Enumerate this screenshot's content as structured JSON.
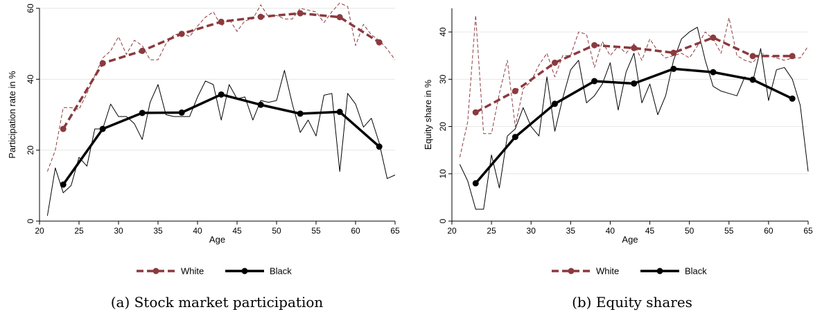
{
  "colors": {
    "white": "#8b3a3e",
    "black": "#000000",
    "grid": "#e6e6e6",
    "axis": "#000000"
  },
  "chart_data": [
    {
      "type": "line",
      "caption": "(a) Stock market participation",
      "xlabel": "Age",
      "ylabel": "Participation rate in %",
      "xlim": [
        20,
        65
      ],
      "ylim": [
        0,
        60
      ],
      "xticks": [
        "20",
        "25",
        "30",
        "35",
        "40",
        "45",
        "50",
        "55",
        "60",
        "65"
      ],
      "yticks": [
        "0",
        "20",
        "40",
        "60"
      ],
      "grid": true,
      "legend": {
        "placement": "bottom",
        "entries": [
          "White",
          "Black"
        ]
      },
      "series": [
        {
          "name": "White",
          "style": "thick-dashed-markers",
          "x": [
            23,
            28,
            33,
            38,
            43,
            48,
            53,
            58,
            63
          ],
          "y": [
            26,
            44.5,
            48,
            52.8,
            56.2,
            57.6,
            58.6,
            57.5,
            50.4
          ]
        },
        {
          "name": "Black",
          "style": "thick-solid-markers",
          "x": [
            23,
            28,
            33,
            38,
            43,
            48,
            53,
            58,
            63
          ],
          "y": [
            10.3,
            26,
            30.5,
            30.6,
            35.7,
            32.8,
            30.3,
            30.8,
            21
          ]
        },
        {
          "name": "White (annual)",
          "style": "thin-dashed",
          "x": [
            21,
            22,
            23,
            24,
            25,
            26,
            27,
            28,
            29,
            30,
            31,
            32,
            33,
            34,
            35,
            36,
            37,
            38,
            39,
            40,
            41,
            42,
            43,
            44,
            45,
            46,
            47,
            48,
            49,
            50,
            51,
            52,
            53,
            54,
            55,
            56,
            57,
            58,
            59,
            60,
            61,
            62,
            63,
            64,
            65
          ],
          "y": [
            14,
            20,
            32,
            32,
            31.5,
            36,
            41,
            46,
            48,
            52,
            47,
            51,
            49.5,
            45.5,
            45.5,
            50,
            52.5,
            53,
            52,
            55,
            57.5,
            59,
            55,
            57,
            53.5,
            56.5,
            57,
            61,
            57.5,
            58,
            57,
            57,
            60,
            59.5,
            59,
            56,
            59,
            61.5,
            60.5,
            49.5,
            55.5,
            52.5,
            51,
            48.5,
            45.5
          ]
        },
        {
          "name": "Black (annual)",
          "style": "thin-solid",
          "x": [
            21,
            22,
            23,
            24,
            25,
            26,
            27,
            28,
            29,
            30,
            31,
            32,
            33,
            34,
            35,
            36,
            37,
            38,
            39,
            40,
            41,
            42,
            43,
            44,
            45,
            46,
            47,
            48,
            49,
            50,
            51,
            52,
            53,
            54,
            55,
            56,
            57,
            58,
            59,
            60,
            61,
            62,
            63,
            64,
            65
          ],
          "y": [
            1.5,
            15,
            8,
            10,
            18,
            15.5,
            26,
            26,
            33,
            29.5,
            29.5,
            27.5,
            23,
            33.5,
            38.5,
            30,
            29.5,
            29.5,
            29.5,
            35,
            39.5,
            38.5,
            28.5,
            38.5,
            34.5,
            35,
            28.5,
            34,
            33.5,
            34,
            42.5,
            33,
            25,
            28.5,
            24,
            35.5,
            36,
            14,
            36,
            33,
            26.5,
            29,
            22,
            12,
            13
          ]
        }
      ]
    },
    {
      "type": "line",
      "caption": "(b) Equity shares",
      "xlabel": "Age",
      "ylabel": "Equity share in %",
      "xlim": [
        20,
        65
      ],
      "ylim": [
        0,
        45
      ],
      "xticks": [
        "20",
        "25",
        "30",
        "35",
        "40",
        "45",
        "50",
        "55",
        "60",
        "65"
      ],
      "yticks": [
        "0",
        "10",
        "20",
        "30",
        "40"
      ],
      "grid": true,
      "legend": {
        "placement": "bottom",
        "entries": [
          "White",
          "Black"
        ]
      },
      "series": [
        {
          "name": "White",
          "style": "thick-dashed-markers",
          "x": [
            23,
            28,
            33,
            38,
            43,
            48,
            53,
            58,
            63
          ],
          "y": [
            23,
            27.5,
            33.5,
            37.2,
            36.6,
            35.6,
            38.8,
            34.9,
            34.9
          ]
        },
        {
          "name": "Black",
          "style": "thick-solid-markers",
          "x": [
            23,
            28,
            33,
            38,
            43,
            48,
            53,
            58,
            63
          ],
          "y": [
            8,
            17.8,
            24.8,
            29.6,
            29.1,
            32.2,
            31.5,
            29.9,
            25.9
          ]
        },
        {
          "name": "White (annual)",
          "style": "thin-dashed",
          "x": [
            21,
            22,
            23,
            24,
            25,
            26,
            27,
            28,
            29,
            30,
            31,
            32,
            33,
            34,
            35,
            36,
            37,
            38,
            39,
            40,
            41,
            42,
            43,
            44,
            45,
            46,
            47,
            48,
            49,
            50,
            51,
            52,
            53,
            54,
            55,
            56,
            57,
            58,
            59,
            60,
            61,
            62,
            63,
            64,
            65
          ],
          "y": [
            13.5,
            21,
            43.5,
            18.5,
            18.5,
            27,
            34,
            20,
            28,
            29.5,
            33,
            35.5,
            30.5,
            35,
            35,
            40,
            39.5,
            32.5,
            38,
            35,
            37,
            35.5,
            37.5,
            34,
            38.5,
            36,
            34.5,
            35,
            35.5,
            34.5,
            37,
            40,
            38.5,
            35.5,
            43,
            35,
            34,
            33.5,
            35.5,
            35,
            34.5,
            34,
            34.5,
            34.5,
            37
          ]
        },
        {
          "name": "Black (annual)",
          "style": "thin-solid",
          "x": [
            21,
            22,
            23,
            24,
            25,
            26,
            27,
            28,
            29,
            30,
            31,
            32,
            33,
            34,
            35,
            36,
            37,
            38,
            39,
            40,
            41,
            42,
            43,
            44,
            45,
            46,
            47,
            48,
            49,
            50,
            51,
            52,
            53,
            54,
            55,
            56,
            57,
            58,
            59,
            60,
            61,
            62,
            63,
            64,
            65
          ],
          "y": [
            12,
            8.5,
            2.5,
            2.5,
            14,
            7,
            18,
            19.5,
            24,
            20,
            18,
            30.5,
            19,
            26,
            32,
            34,
            25,
            26.5,
            29,
            33.5,
            23.5,
            31.5,
            35.5,
            25,
            29,
            22.5,
            26.5,
            34,
            38.5,
            40,
            41,
            34,
            28.5,
            27.5,
            27,
            26.5,
            30.5,
            29.5,
            36.5,
            25.5,
            32,
            32.5,
            30,
            24.5,
            10.5
          ]
        }
      ]
    }
  ]
}
